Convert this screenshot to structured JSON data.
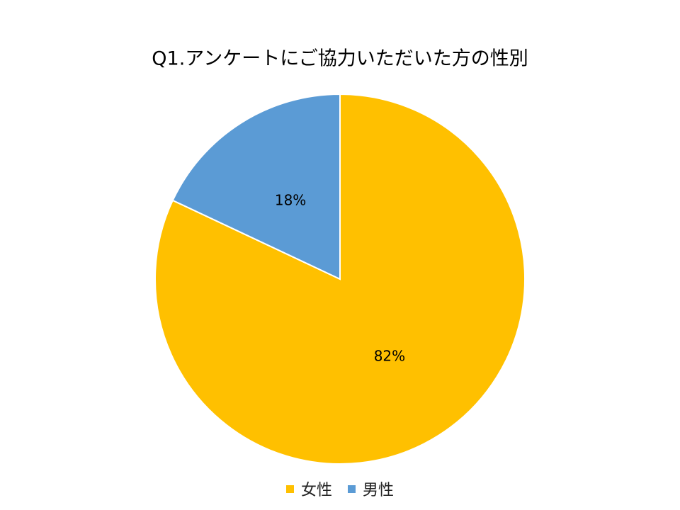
{
  "chart_data": {
    "type": "pie",
    "title": "Q1.アンケートにご協力いただいた方の性別",
    "categories": [
      "女性",
      "男性"
    ],
    "values": [
      82,
      18
    ],
    "value_labels": [
      "82%",
      "18%"
    ],
    "colors": [
      "#ffc000",
      "#5b9bd5"
    ],
    "legend": "bottom"
  }
}
